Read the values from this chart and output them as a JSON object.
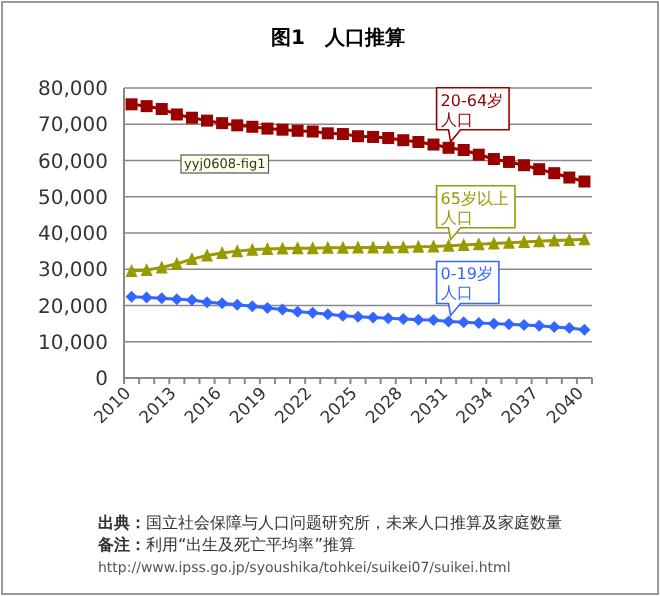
{
  "chart_data": {
    "type": "line",
    "title": "图1　人口推算",
    "categories": [
      "2010",
      null,
      null,
      "2013",
      null,
      null,
      "2016",
      null,
      null,
      "2019",
      null,
      null,
      "2022",
      null,
      null,
      "2025",
      null,
      null,
      "2028",
      null,
      null,
      "2031",
      null,
      null,
      "2034",
      null,
      null,
      "2037",
      null,
      null,
      "2040"
    ],
    "series": [
      {
        "name": "20-64岁人口",
        "color": "#990000",
        "marker": "square",
        "values": [
          75500,
          75000,
          74200,
          72700,
          71800,
          71000,
          70300,
          69700,
          69300,
          68800,
          68500,
          68200,
          68000,
          67500,
          67300,
          66700,
          66500,
          66200,
          65600,
          65100,
          64400,
          63500,
          62900,
          61600,
          60400,
          59600,
          58700,
          57600,
          56500,
          55300,
          54200
        ]
      },
      {
        "name": "65岁以上人口",
        "color": "#999900",
        "marker": "triangle",
        "values": [
          29500,
          29800,
          30500,
          31500,
          32800,
          33800,
          34500,
          35000,
          35400,
          35600,
          35700,
          35800,
          35800,
          35900,
          35900,
          36000,
          36000,
          36000,
          36100,
          36200,
          36300,
          36500,
          36700,
          36900,
          37100,
          37300,
          37500,
          37700,
          37900,
          38100,
          38300
        ]
      },
      {
        "name": "0-19岁人口",
        "color": "#3366ff",
        "marker": "diamond",
        "values": [
          22400,
          22200,
          22000,
          21700,
          21500,
          20900,
          20600,
          20200,
          19800,
          19300,
          18900,
          18300,
          18000,
          17600,
          17200,
          16900,
          16700,
          16500,
          16300,
          16100,
          16000,
          15600,
          15400,
          15200,
          15000,
          14800,
          14600,
          14400,
          14100,
          13800,
          13300
        ]
      }
    ],
    "ylim": [
      0,
      80000
    ],
    "yticks": [
      {
        "value": 0,
        "label": "0"
      },
      {
        "value": 10000,
        "label": "10,000"
      },
      {
        "value": 20000,
        "label": "20,000"
      },
      {
        "value": 30000,
        "label": "30,000"
      },
      {
        "value": 40000,
        "label": "40,000"
      },
      {
        "value": 50000,
        "label": "50,000"
      },
      {
        "value": 60000,
        "label": "60,000"
      },
      {
        "value": 70000,
        "label": "70,000"
      },
      {
        "value": 80000,
        "label": "80,000"
      }
    ],
    "grid": "y",
    "annotations": [
      "yyj0608-fig1",
      "**出典：**国立社会保障与人口问题研究所，未来人口推算及家庭数量",
      "**备注：**利用“出生及死亡平均率”推算",
      "http://www.ipss.go.jp/syoushika/tohkei/suikei07/suikei.html"
    ]
  }
}
